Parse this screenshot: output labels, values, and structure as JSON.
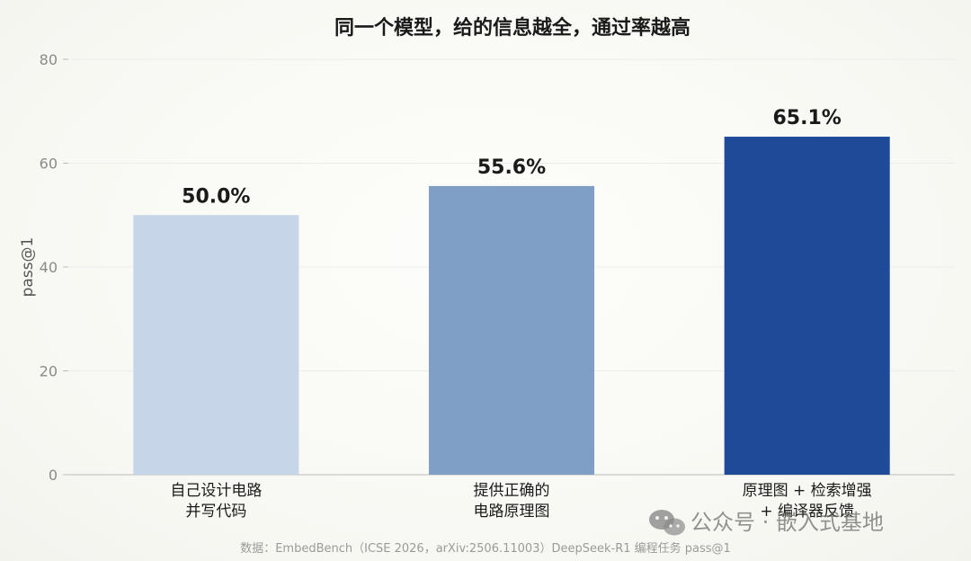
{
  "chart_data": {
    "type": "bar",
    "title": "同一个模型，给的信息越全，通过率越高",
    "ylabel": "pass@1",
    "ylim": [
      0,
      80
    ],
    "yticks": [
      0,
      20,
      40,
      60,
      80
    ],
    "grid": true,
    "categories": [
      [
        "自己设计电路",
        "并写代码"
      ],
      [
        "提供正确的",
        "电路原理图"
      ],
      [
        "原理图 + 检索增强",
        "+ 编译器反馈"
      ]
    ],
    "values": [
      50.0,
      55.6,
      65.1
    ],
    "value_labels": [
      "50.0%",
      "55.6%",
      "65.1%"
    ],
    "colors": [
      "#c6d5e8",
      "#809fc6",
      "#1f4a98"
    ],
    "source": "数据：EmbedBench（ICSE 2026，arXiv:2506.11003）DeepSeek-R1 编程任务 pass@1"
  },
  "watermark": {
    "text": "公众号 · 嵌入式基地",
    "icon": "wechat-icon"
  }
}
